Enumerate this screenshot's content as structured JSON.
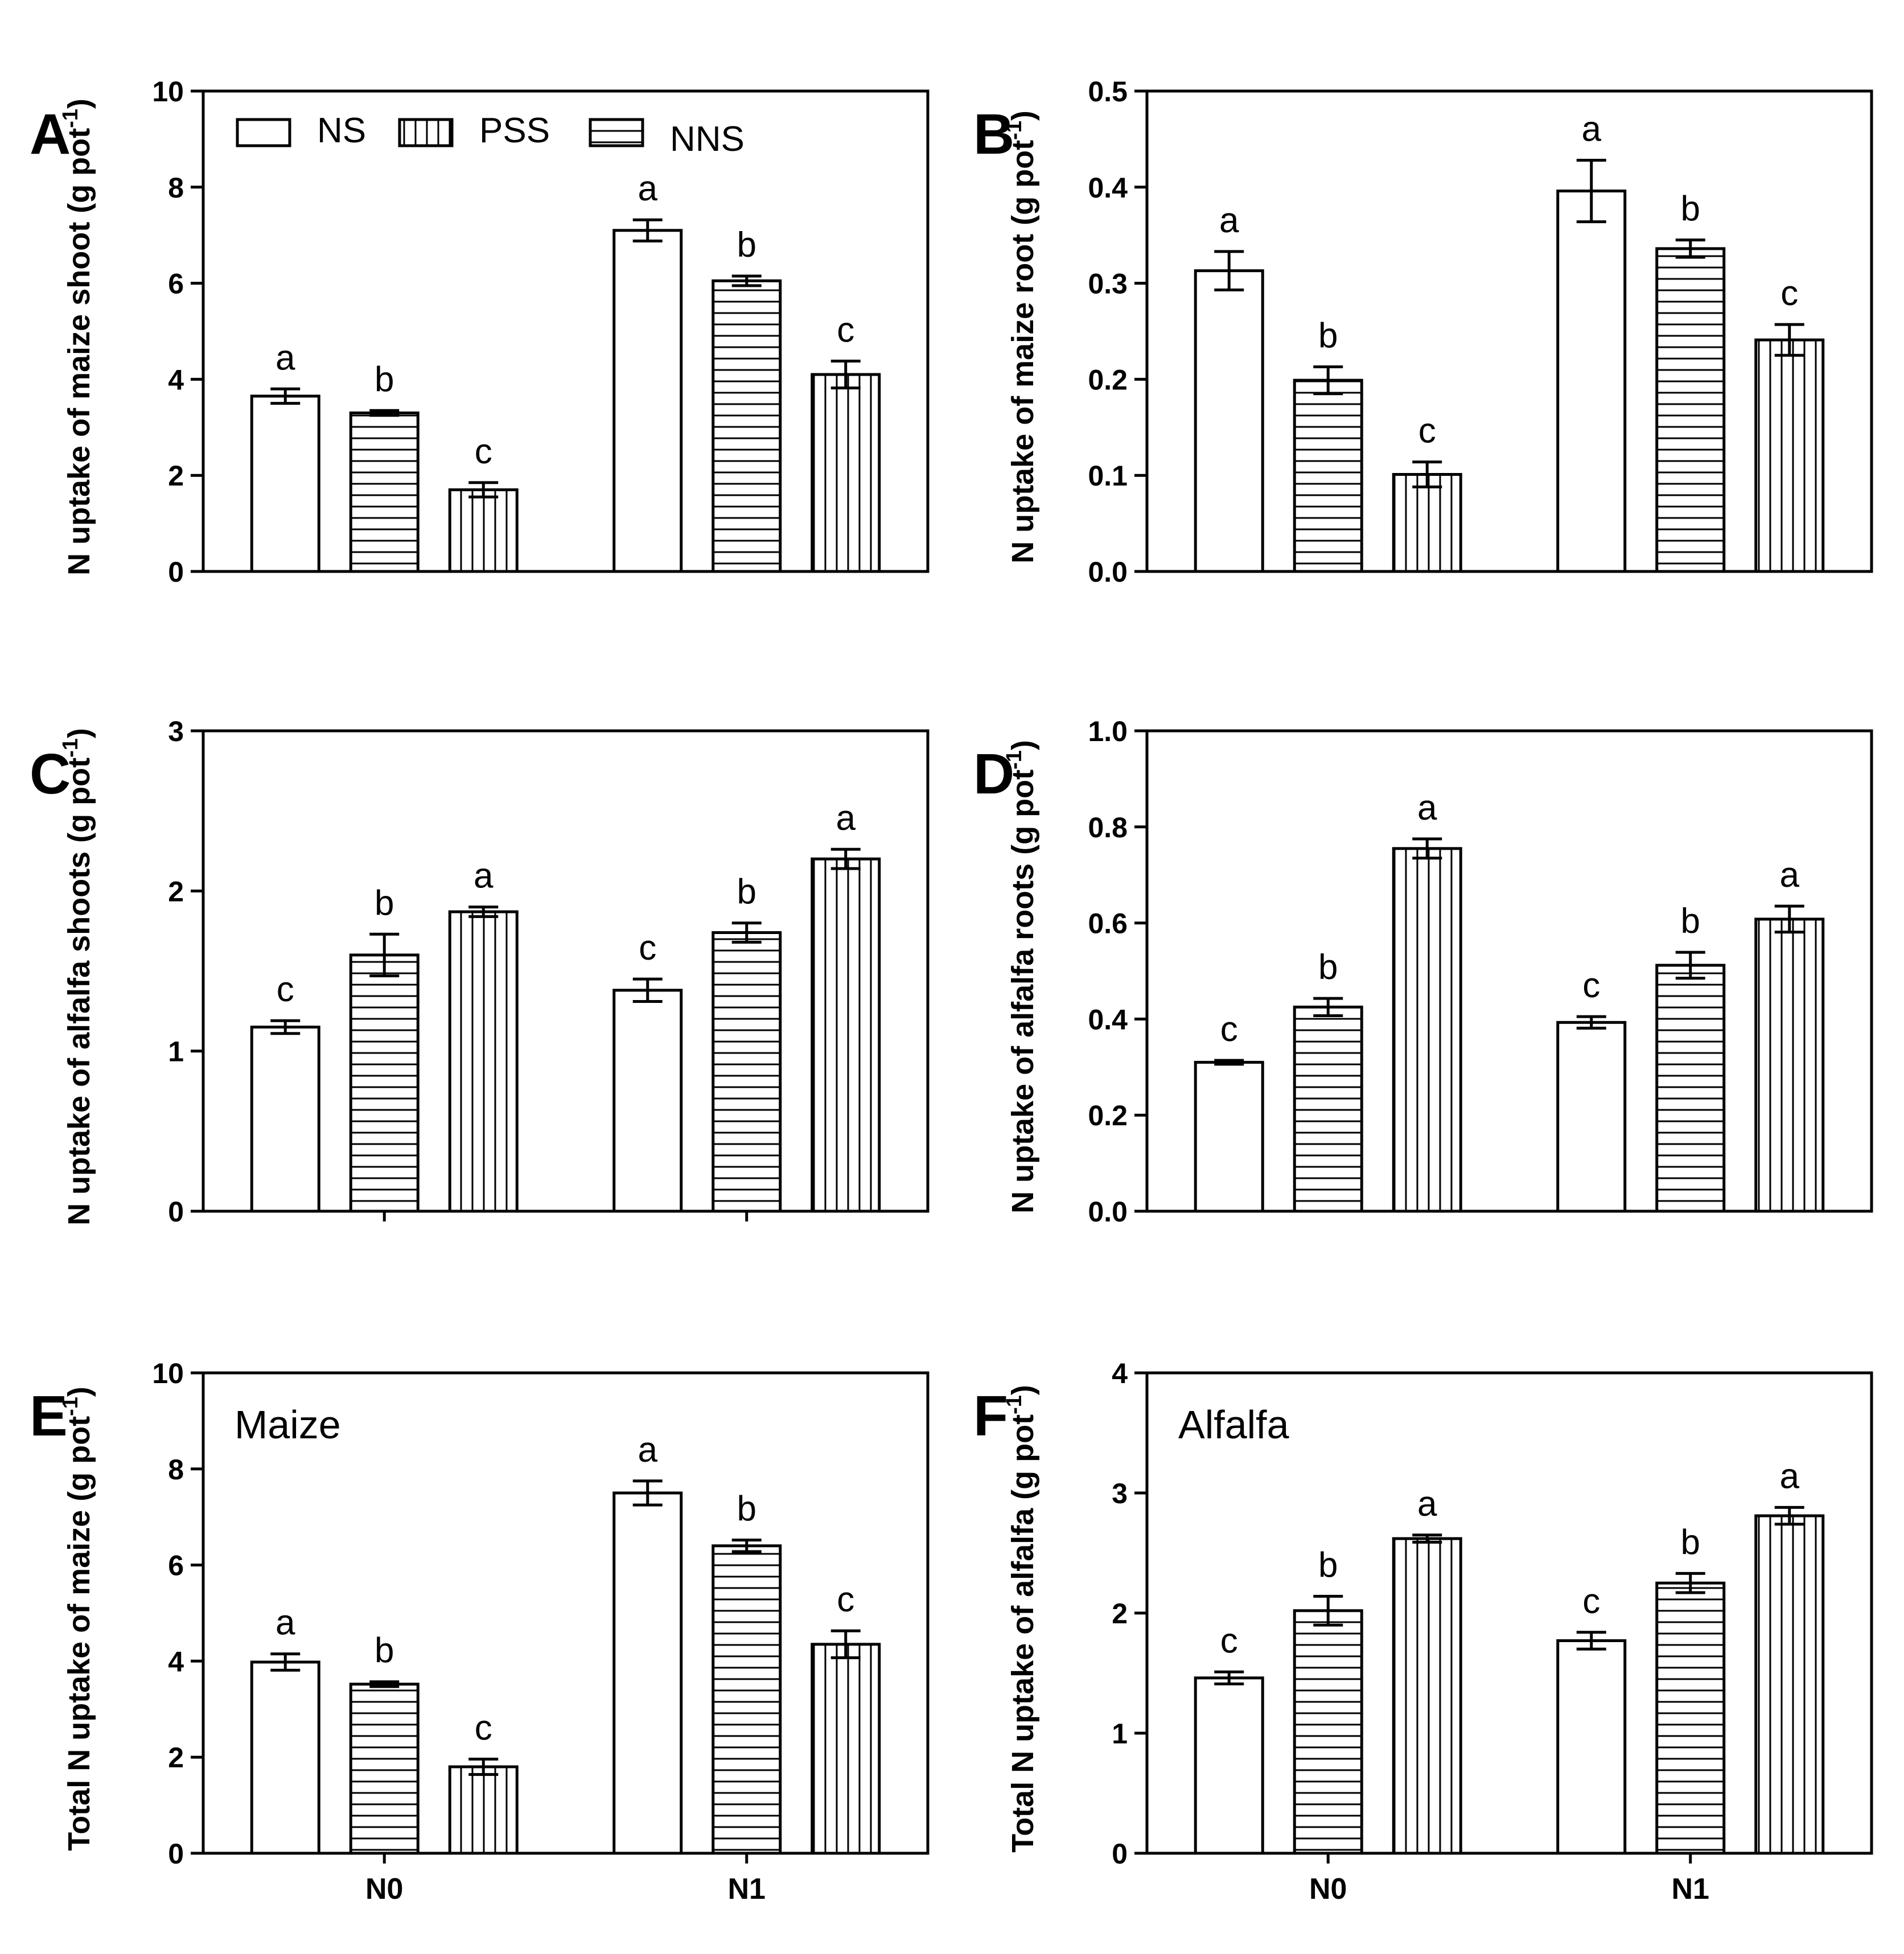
{
  "figure": {
    "legend": [
      {
        "name": "NS",
        "pattern": "none"
      },
      {
        "name": "PSS",
        "pattern": "vertical"
      },
      {
        "name": "NNS",
        "pattern": "horizontal"
      }
    ],
    "colors": {
      "bar_fill": "#ffffff",
      "stroke": "#000000"
    }
  },
  "chart_data": [
    {
      "panel": "A",
      "type": "bar",
      "ylabel": "N uptake of maize shoot (g pot-1)",
      "ylabel_main": "N uptake of maize shoot (g pot",
      "ylabel_sup": "-1",
      "ylabel_close": ")",
      "ylim": [
        0,
        10
      ],
      "yticks": [
        0,
        2,
        4,
        6,
        8,
        10
      ],
      "ytick_labels": [
        "0",
        "2",
        "4",
        "6",
        "8",
        "10"
      ],
      "categories": [
        "N0",
        "N1"
      ],
      "show_category_labels": false,
      "show_category_ticks": false,
      "inset_label": "",
      "series": [
        {
          "name": "NS",
          "pattern": "none",
          "values": [
            3.65,
            7.1
          ],
          "errors": [
            0.15,
            0.22
          ],
          "letters": [
            "a",
            "a"
          ]
        },
        {
          "name": "NNS",
          "pattern": "horizontal",
          "values": [
            3.3,
            6.05
          ],
          "errors": [
            0.05,
            0.1
          ],
          "letters": [
            "b",
            "b"
          ]
        },
        {
          "name": "PSS",
          "pattern": "vertical",
          "values": [
            1.7,
            4.1
          ],
          "errors": [
            0.15,
            0.28
          ],
          "letters": [
            "c",
            "c"
          ]
        }
      ]
    },
    {
      "panel": "B",
      "type": "bar",
      "ylabel": "N uptake of maize root (g pot-1)",
      "ylabel_main": "N uptake of maize root (g pot",
      "ylabel_sup": "-1",
      "ylabel_close": ")",
      "ylim": [
        0,
        0.5
      ],
      "yticks": [
        0,
        0.1,
        0.2,
        0.3,
        0.4,
        0.5
      ],
      "ytick_labels": [
        "0.0",
        "0.1",
        "0.2",
        "0.3",
        "0.4",
        "0.5"
      ],
      "categories": [
        "N0",
        "N1"
      ],
      "show_category_labels": false,
      "show_category_ticks": false,
      "inset_label": "",
      "series": [
        {
          "name": "NS",
          "pattern": "none",
          "values": [
            0.313,
            0.396
          ],
          "errors": [
            0.02,
            0.032
          ],
          "letters": [
            "a",
            "a"
          ]
        },
        {
          "name": "NNS",
          "pattern": "horizontal",
          "values": [
            0.199,
            0.336
          ],
          "errors": [
            0.014,
            0.009
          ],
          "letters": [
            "b",
            "b"
          ]
        },
        {
          "name": "PSS",
          "pattern": "vertical",
          "values": [
            0.101,
            0.241
          ],
          "errors": [
            0.013,
            0.016
          ],
          "letters": [
            "c",
            "c"
          ]
        }
      ]
    },
    {
      "panel": "C",
      "type": "bar",
      "ylabel": "N uptake of alfalfa shoots (g pot-1)",
      "ylabel_main": "N uptake of alfalfa shoots (g pot",
      "ylabel_sup": "-1",
      "ylabel_close": ")",
      "ylim": [
        0,
        3
      ],
      "yticks": [
        0,
        1,
        2,
        3
      ],
      "ytick_labels": [
        "0",
        "1",
        "2",
        "3"
      ],
      "categories": [
        "N0",
        "N1"
      ],
      "show_category_labels": false,
      "show_category_ticks": true,
      "inset_label": "",
      "series": [
        {
          "name": "NS",
          "pattern": "none",
          "values": [
            1.15,
            1.38
          ],
          "errors": [
            0.04,
            0.07
          ],
          "letters": [
            "c",
            "c"
          ]
        },
        {
          "name": "NNS",
          "pattern": "horizontal",
          "values": [
            1.6,
            1.74
          ],
          "errors": [
            0.13,
            0.06
          ],
          "letters": [
            "b",
            "b"
          ]
        },
        {
          "name": "PSS",
          "pattern": "vertical",
          "values": [
            1.87,
            2.2
          ],
          "errors": [
            0.03,
            0.06
          ],
          "letters": [
            "a",
            "a"
          ]
        }
      ]
    },
    {
      "panel": "D",
      "type": "bar",
      "ylabel": "N uptake of alfalfa roots (g pot-1)",
      "ylabel_main": "N uptake of alfalfa roots (g pot",
      "ylabel_sup": "-1",
      "ylabel_close": ")",
      "ylim": [
        0,
        1.0
      ],
      "yticks": [
        0,
        0.2,
        0.4,
        0.6,
        0.8,
        1.0
      ],
      "ytick_labels": [
        "0.0",
        "0.2",
        "0.4",
        "0.6",
        "0.8",
        "1.0"
      ],
      "categories": [
        "N0",
        "N1"
      ],
      "show_category_labels": false,
      "show_category_ticks": false,
      "inset_label": "",
      "series": [
        {
          "name": "NS",
          "pattern": "none",
          "values": [
            0.31,
            0.393
          ],
          "errors": [
            0.004,
            0.012
          ],
          "letters": [
            "c",
            "c"
          ]
        },
        {
          "name": "NNS",
          "pattern": "horizontal",
          "values": [
            0.425,
            0.512
          ],
          "errors": [
            0.018,
            0.027
          ],
          "letters": [
            "b",
            "b"
          ]
        },
        {
          "name": "PSS",
          "pattern": "vertical",
          "values": [
            0.755,
            0.608
          ],
          "errors": [
            0.02,
            0.027
          ],
          "letters": [
            "a",
            "a"
          ]
        }
      ]
    },
    {
      "panel": "E",
      "type": "bar",
      "ylabel": "Total N uptake of maize (g pot-1)",
      "ylabel_main": "Total N uptake of maize (g pot",
      "ylabel_sup": "-1",
      "ylabel_close": ")",
      "ylim": [
        0,
        10
      ],
      "yticks": [
        0,
        2,
        4,
        6,
        8,
        10
      ],
      "ytick_labels": [
        "0",
        "2",
        "4",
        "6",
        "8",
        "10"
      ],
      "categories": [
        "N0",
        "N1"
      ],
      "show_category_labels": true,
      "show_category_ticks": true,
      "inset_label": "Maize",
      "series": [
        {
          "name": "NS",
          "pattern": "none",
          "values": [
            3.98,
            7.5
          ],
          "errors": [
            0.17,
            0.25
          ],
          "letters": [
            "a",
            "a"
          ]
        },
        {
          "name": "NNS",
          "pattern": "horizontal",
          "values": [
            3.52,
            6.4
          ],
          "errors": [
            0.05,
            0.12
          ],
          "letters": [
            "b",
            "b"
          ]
        },
        {
          "name": "PSS",
          "pattern": "vertical",
          "values": [
            1.8,
            4.35
          ],
          "errors": [
            0.16,
            0.28
          ],
          "letters": [
            "c",
            "c"
          ]
        }
      ]
    },
    {
      "panel": "F",
      "type": "bar",
      "ylabel": "Total N uptake of alfalfa (g pot-1)",
      "ylabel_main": "Total N uptake of alfalfa (g pot",
      "ylabel_sup": "-1",
      "ylabel_close": ")",
      "ylim": [
        0,
        4
      ],
      "yticks": [
        0,
        1,
        2,
        3,
        4
      ],
      "ytick_labels": [
        "0",
        "1",
        "2",
        "3",
        "4"
      ],
      "categories": [
        "N0",
        "N1"
      ],
      "show_category_labels": true,
      "show_category_ticks": true,
      "inset_label": "Alfalfa",
      "series": [
        {
          "name": "NS",
          "pattern": "none",
          "values": [
            1.46,
            1.77
          ],
          "errors": [
            0.05,
            0.07
          ],
          "letters": [
            "c",
            "c"
          ]
        },
        {
          "name": "NNS",
          "pattern": "horizontal",
          "values": [
            2.02,
            2.25
          ],
          "errors": [
            0.12,
            0.08
          ],
          "letters": [
            "b",
            "b"
          ]
        },
        {
          "name": "PSS",
          "pattern": "vertical",
          "values": [
            2.62,
            2.81
          ],
          "errors": [
            0.03,
            0.07
          ],
          "letters": [
            "a",
            "a"
          ]
        }
      ]
    }
  ]
}
